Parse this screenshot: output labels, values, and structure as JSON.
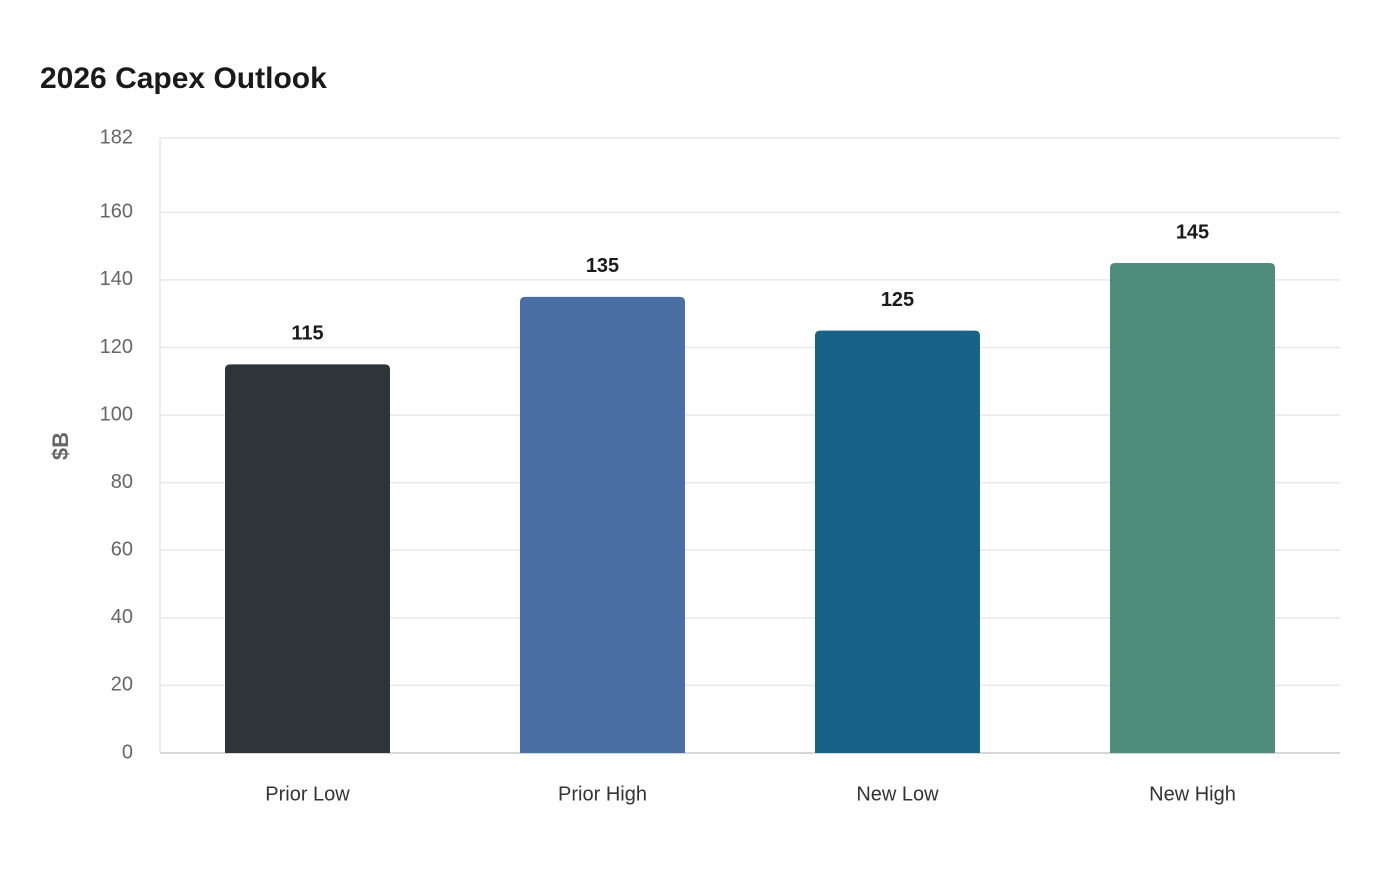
{
  "chart_data": {
    "type": "bar",
    "title": "2026 Capex Outlook",
    "y_label": "$B",
    "categories": [
      "Prior Low",
      "Prior High",
      "New Low",
      "New High"
    ],
    "values": [
      115,
      135,
      125,
      145
    ],
    "colors": [
      "#2e3538",
      "#4a6fa5",
      "#186287",
      "#4f8d7b"
    ],
    "ylim": [
      0,
      182
    ],
    "yticks": [
      0,
      20,
      40,
      60,
      80,
      100,
      120,
      140,
      160,
      182
    ],
    "grid": true
  }
}
